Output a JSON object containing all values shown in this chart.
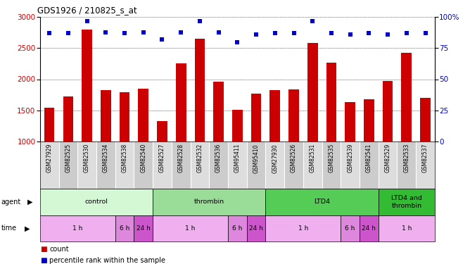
{
  "title": "GDS1926 / 210825_s_at",
  "samples": [
    "GSM27929",
    "GSM82525",
    "GSM82530",
    "GSM82534",
    "GSM82538",
    "GSM82540",
    "GSM82527",
    "GSM82528",
    "GSM82532",
    "GSM82536",
    "GSM95411",
    "GSM95410",
    "GSM27930",
    "GSM82526",
    "GSM82531",
    "GSM82535",
    "GSM82539",
    "GSM82541",
    "GSM82529",
    "GSM82533",
    "GSM82537"
  ],
  "counts": [
    1540,
    1720,
    2800,
    1820,
    1790,
    1850,
    1320,
    2260,
    2650,
    1960,
    1510,
    1770,
    1820,
    1840,
    2580,
    2270,
    1630,
    1680,
    1970,
    2430,
    1700
  ],
  "percentiles": [
    87,
    87,
    97,
    88,
    87,
    88,
    82,
    88,
    97,
    88,
    80,
    86,
    87,
    87,
    97,
    87,
    86,
    87,
    86,
    87,
    87
  ],
  "bar_color": "#cc0000",
  "dot_color": "#0000cc",
  "ylim_left": [
    1000,
    3000
  ],
  "ylim_right": [
    0,
    100
  ],
  "yticks_left": [
    1000,
    1500,
    2000,
    2500,
    3000
  ],
  "yticks_right": [
    0,
    25,
    50,
    75,
    100
  ],
  "ytick_labels_right": [
    "0",
    "25",
    "50",
    "75",
    "100%"
  ],
  "agent_groups": [
    {
      "label": "control",
      "start": 0,
      "end": 6,
      "color": "#d4f7d4"
    },
    {
      "label": "thrombin",
      "start": 6,
      "end": 12,
      "color": "#99dd99"
    },
    {
      "label": "LTD4",
      "start": 12,
      "end": 18,
      "color": "#55cc55"
    },
    {
      "label": "LTD4 and\nthrombin",
      "start": 18,
      "end": 21,
      "color": "#33bb33"
    }
  ],
  "time_groups": [
    {
      "label": "1 h",
      "start": 0,
      "end": 4,
      "color": "#f0b0f0"
    },
    {
      "label": "6 h",
      "start": 4,
      "end": 5,
      "color": "#dd88dd"
    },
    {
      "label": "24 h",
      "start": 5,
      "end": 6,
      "color": "#cc55cc"
    },
    {
      "label": "1 h",
      "start": 6,
      "end": 10,
      "color": "#f0b0f0"
    },
    {
      "label": "6 h",
      "start": 10,
      "end": 11,
      "color": "#dd88dd"
    },
    {
      "label": "24 h",
      "start": 11,
      "end": 12,
      "color": "#cc55cc"
    },
    {
      "label": "1 h",
      "start": 12,
      "end": 16,
      "color": "#f0b0f0"
    },
    {
      "label": "6 h",
      "start": 16,
      "end": 17,
      "color": "#dd88dd"
    },
    {
      "label": "24 h",
      "start": 17,
      "end": 18,
      "color": "#cc55cc"
    },
    {
      "label": "1 h",
      "start": 18,
      "end": 21,
      "color": "#f0b0f0"
    }
  ],
  "legend_items": [
    {
      "label": "count",
      "color": "#cc0000"
    },
    {
      "label": "percentile rank within the sample",
      "color": "#0000cc"
    }
  ],
  "sample_bg_color": "#cccccc",
  "sample_alt_color": "#dddddd"
}
